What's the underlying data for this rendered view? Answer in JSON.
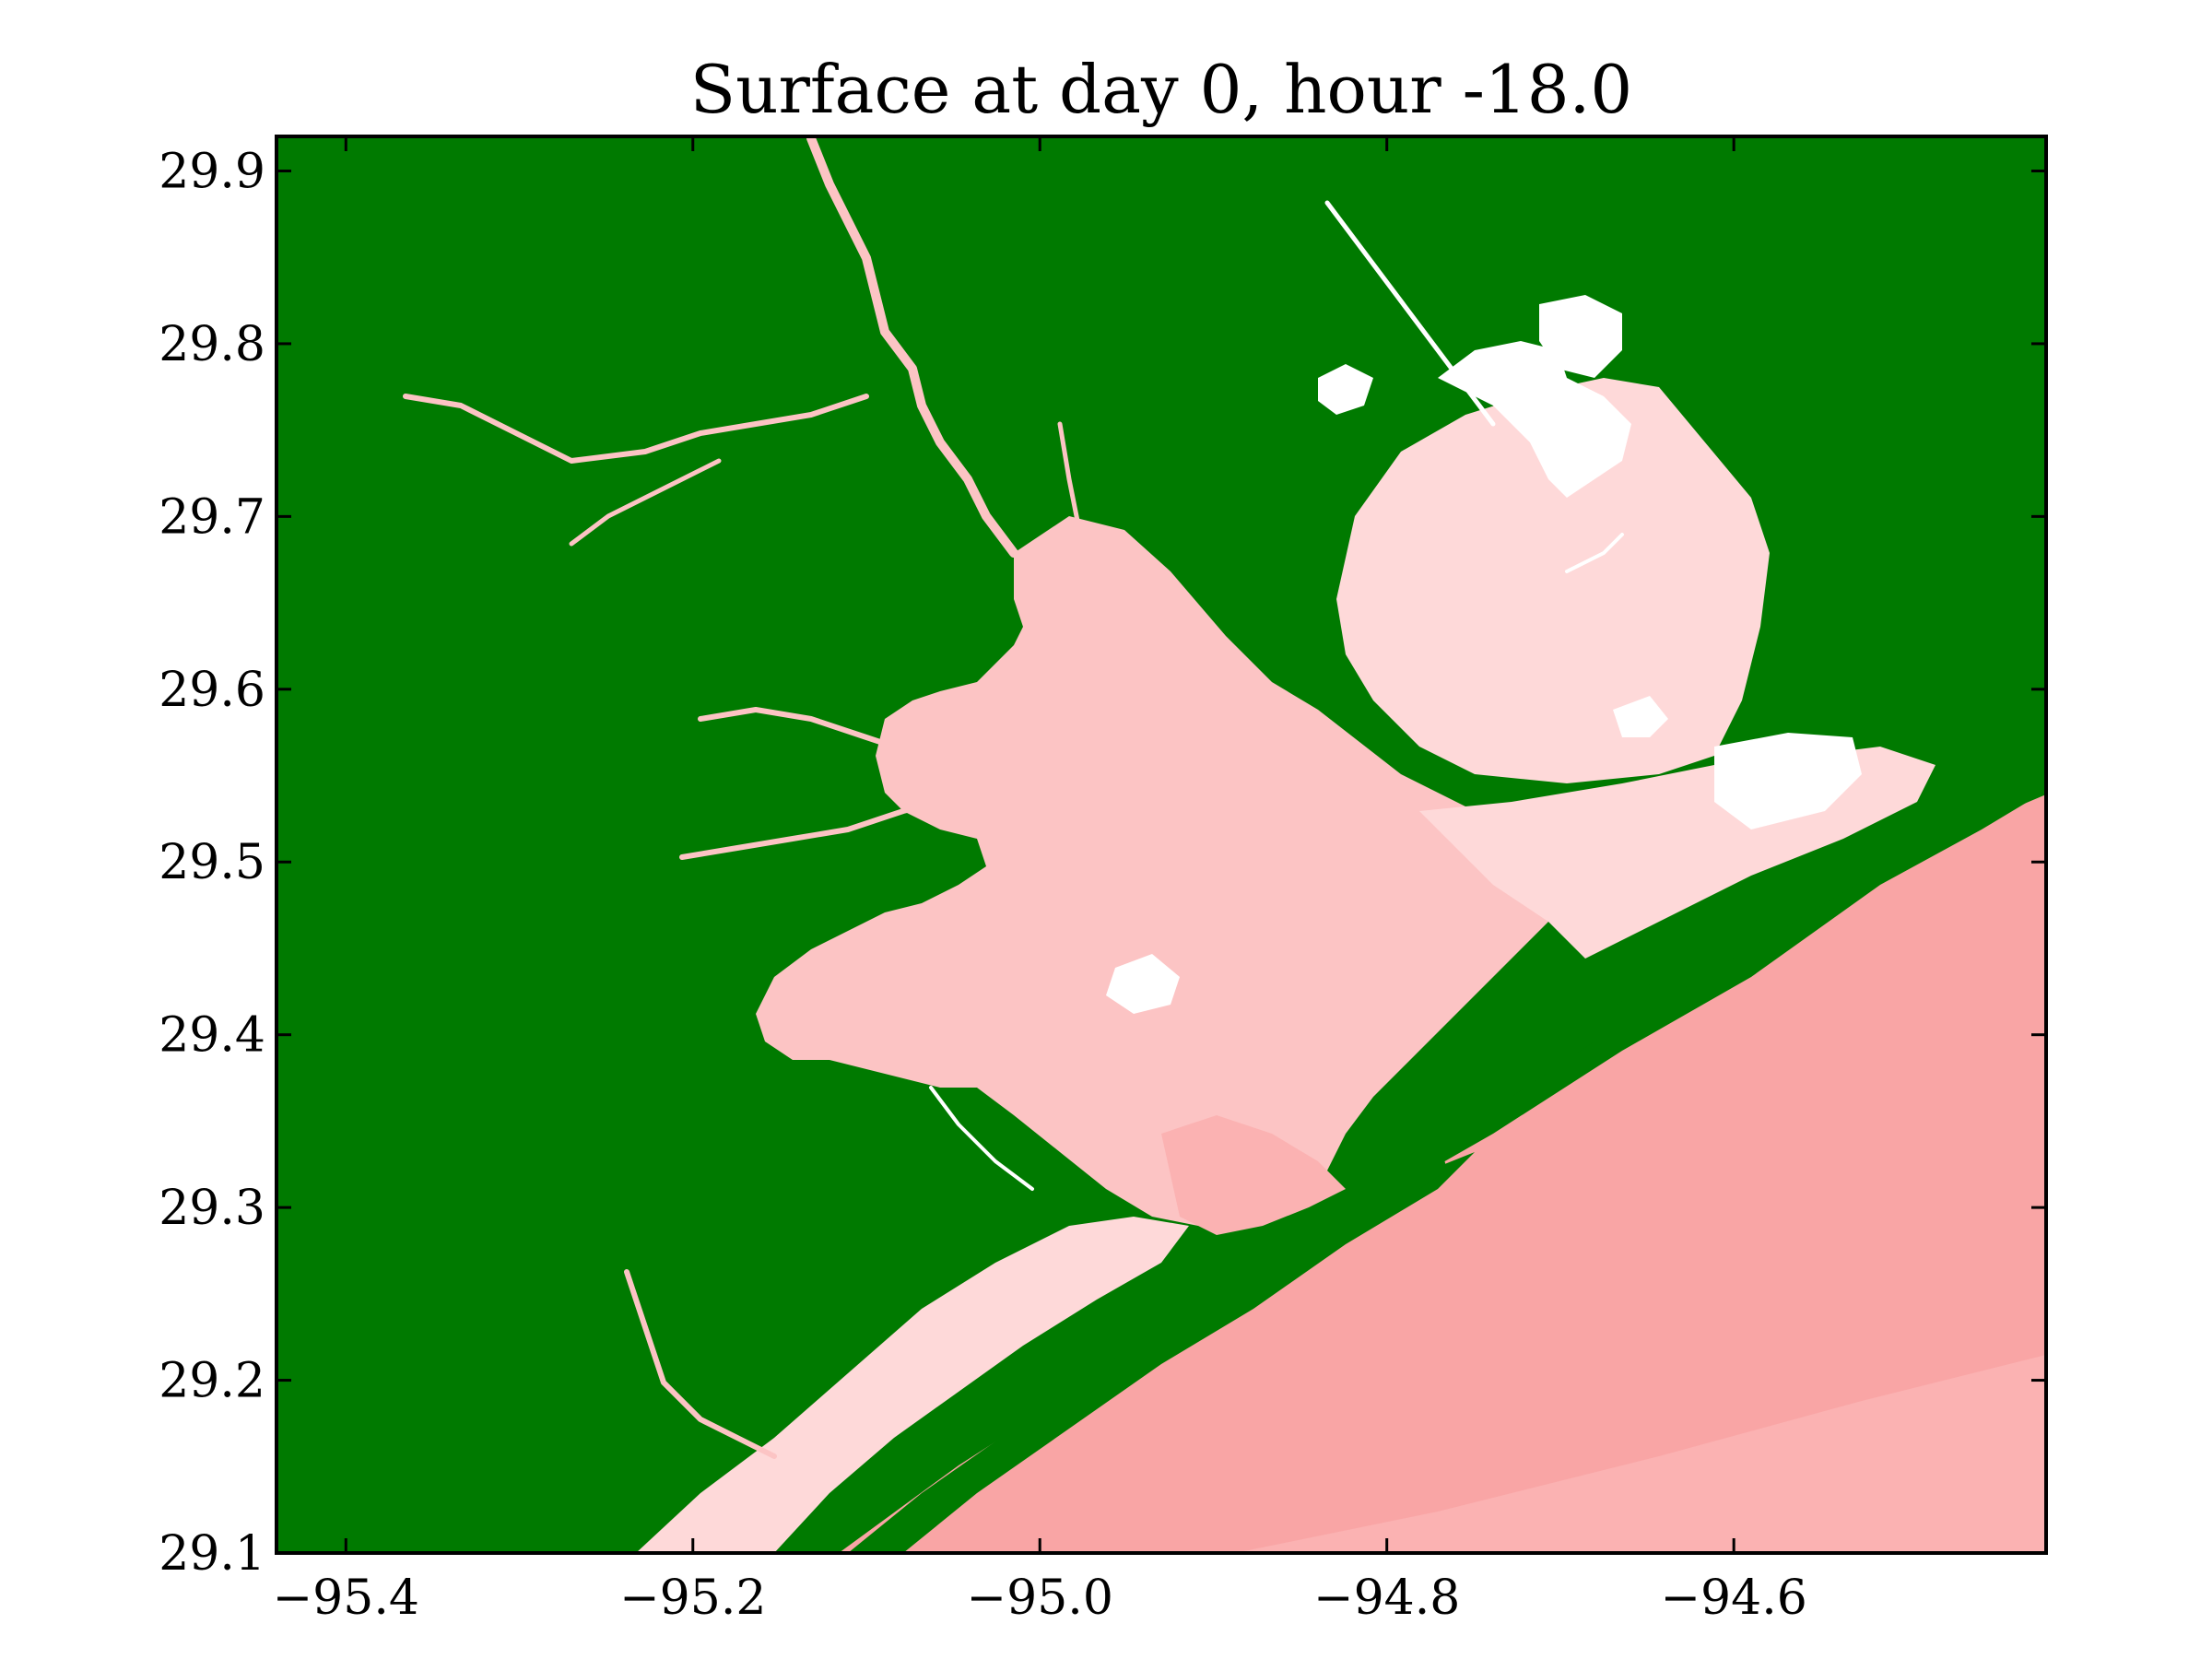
{
  "title": "Surface at day 0, hour -18.0",
  "colors": {
    "land": "#007a00",
    "dry": "#ffffff",
    "surface_low": "#fed9d9",
    "surface_mid": "#fcc4c4",
    "surface_high": "#fbb2b2",
    "surface_max": "#f9a5a5"
  },
  "map": {
    "xlim": [
      -95.44,
      -94.42
    ],
    "ylim": [
      29.1,
      29.92
    ],
    "x_ticks": [
      {
        "value": -95.4,
        "label": "−95.4"
      },
      {
        "value": -95.2,
        "label": "−95.2"
      },
      {
        "value": -95.0,
        "label": "−95.0"
      },
      {
        "value": -94.8,
        "label": "−94.8"
      },
      {
        "value": -94.6,
        "label": "−94.6"
      }
    ],
    "y_ticks": [
      {
        "value": 29.1,
        "label": "29.1"
      },
      {
        "value": 29.2,
        "label": "29.2"
      },
      {
        "value": 29.3,
        "label": "29.3"
      },
      {
        "value": 29.4,
        "label": "29.4"
      },
      {
        "value": 29.5,
        "label": "29.5"
      },
      {
        "value": 29.6,
        "label": "29.6"
      },
      {
        "value": 29.7,
        "label": "29.7"
      },
      {
        "value": 29.8,
        "label": "29.8"
      },
      {
        "value": 29.9,
        "label": "29.9"
      }
    ]
  }
}
